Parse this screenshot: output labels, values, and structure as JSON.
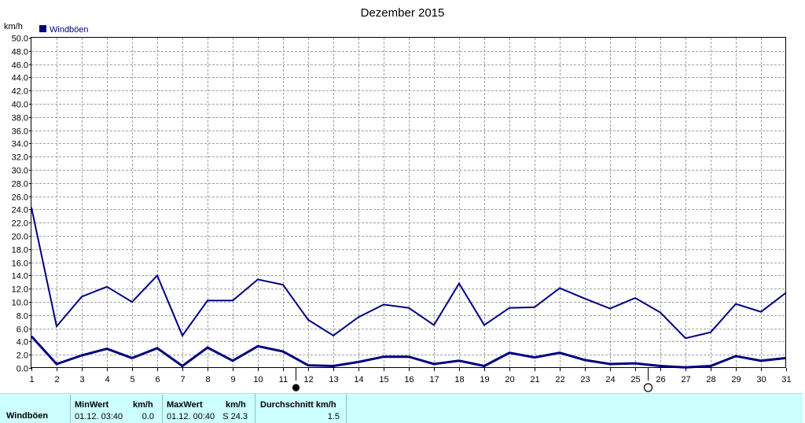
{
  "chart_data": {
    "type": "line",
    "title": "Dezember 2015",
    "ylabel": "km/h",
    "ylim": [
      0,
      50
    ],
    "yticks": [
      "0.0",
      "2.0",
      "4.0",
      "6.0",
      "8.0",
      "10.0",
      "12.0",
      "14.0",
      "16.0",
      "18.0",
      "20.0",
      "22.0",
      "24.0",
      "26.0",
      "28.0",
      "30.0",
      "32.0",
      "34.0",
      "36.0",
      "38.0",
      "40.0",
      "42.0",
      "44.0",
      "46.0",
      "48.0",
      "50.0"
    ],
    "x": [
      1,
      2,
      3,
      4,
      5,
      6,
      7,
      8,
      9,
      10,
      11,
      12,
      13,
      14,
      15,
      16,
      17,
      18,
      19,
      20,
      21,
      22,
      23,
      24,
      25,
      26,
      27,
      28,
      29,
      30,
      31
    ],
    "xticks": [
      "1",
      "2",
      "3",
      "4",
      "5",
      "6",
      "7",
      "8",
      "9",
      "10",
      "11",
      "12",
      "13",
      "14",
      "15",
      "16",
      "17",
      "18",
      "19",
      "20",
      "21",
      "22",
      "23",
      "24",
      "25",
      "26",
      "27",
      "28",
      "29",
      "30",
      "31"
    ],
    "grid": true,
    "legend": {
      "position": "top-left",
      "entries": [
        "Windböen"
      ]
    },
    "series": [
      {
        "name": "Windböen",
        "role": "max",
        "color": "#000080",
        "values": [
          24.3,
          6.3,
          10.8,
          12.3,
          10.0,
          14.0,
          4.9,
          10.2,
          10.2,
          13.4,
          12.6,
          7.3,
          4.9,
          7.7,
          9.6,
          9.1,
          6.5,
          12.8,
          6.5,
          9.1,
          9.2,
          12.1,
          10.5,
          9.0,
          10.6,
          8.4,
          4.5,
          5.4,
          9.7,
          8.5,
          11.4
        ]
      },
      {
        "role": "avg",
        "color": "#000080",
        "values": [
          4.8,
          0.6,
          1.9,
          2.9,
          1.5,
          3.0,
          0.3,
          3.1,
          1.1,
          3.3,
          2.5,
          0.4,
          0.3,
          0.9,
          1.7,
          1.7,
          0.6,
          1.1,
          0.3,
          2.3,
          1.6,
          2.3,
          1.2,
          0.6,
          0.7,
          0.3,
          0.1,
          0.3,
          1.8,
          1.1,
          1.5
        ]
      }
    ],
    "moon_phases": [
      {
        "phase": "new-moon",
        "at": 11.5
      },
      {
        "phase": "full-moon",
        "at": 25.5
      }
    ]
  },
  "stats": {
    "row_label": "Windböen",
    "min": {
      "header": "MinWert",
      "unit": "km/h",
      "datetime": "01.12.  03:40",
      "value": "0.0"
    },
    "max": {
      "header": "MaxWert",
      "unit": "km/h",
      "datetime": "01.12.  00:40",
      "value": "S 24.3"
    },
    "avg": {
      "header": "Durchschnitt km/h",
      "value": "1.5"
    }
  },
  "colors": {
    "series": "#000080",
    "grid": "#a0a0a0",
    "stats_bg": "#ccffff"
  }
}
